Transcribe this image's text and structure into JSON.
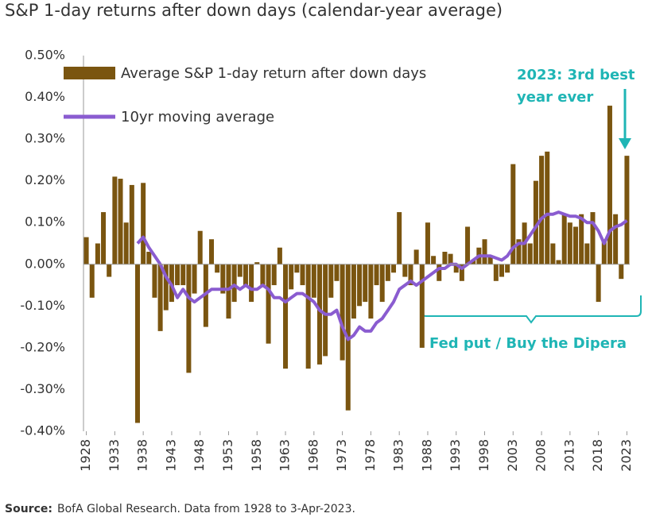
{
  "chart_data": {
    "type": "bar",
    "title": "S&P 1-day returns after down days (calendar-year average)",
    "x": [
      1928,
      1929,
      1930,
      1931,
      1932,
      1933,
      1934,
      1935,
      1936,
      1937,
      1938,
      1939,
      1940,
      1941,
      1942,
      1943,
      1944,
      1945,
      1946,
      1947,
      1948,
      1949,
      1950,
      1951,
      1952,
      1953,
      1954,
      1955,
      1956,
      1957,
      1958,
      1959,
      1960,
      1961,
      1962,
      1963,
      1964,
      1965,
      1966,
      1967,
      1968,
      1969,
      1970,
      1971,
      1972,
      1973,
      1974,
      1975,
      1976,
      1977,
      1978,
      1979,
      1980,
      1981,
      1982,
      1983,
      1984,
      1985,
      1986,
      1987,
      1988,
      1989,
      1990,
      1991,
      1992,
      1993,
      1994,
      1995,
      1996,
      1997,
      1998,
      1999,
      2000,
      2001,
      2002,
      2003,
      2004,
      2005,
      2006,
      2007,
      2008,
      2009,
      2010,
      2011,
      2012,
      2013,
      2014,
      2015,
      2016,
      2017,
      2018,
      2019,
      2020,
      2021,
      2022,
      2023
    ],
    "series": [
      {
        "name": "Average S&P 1-day return after down days",
        "color": "#7a5510",
        "type": "bar",
        "values": [
          0.065,
          -0.08,
          0.05,
          0.125,
          -0.03,
          0.21,
          0.205,
          0.1,
          0.19,
          -0.38,
          0.195,
          0.03,
          -0.08,
          -0.16,
          -0.11,
          -0.09,
          -0.05,
          -0.05,
          -0.26,
          -0.07,
          0.08,
          -0.15,
          0.06,
          -0.02,
          -0.07,
          -0.13,
          -0.09,
          -0.03,
          -0.05,
          -0.09,
          0.005,
          -0.05,
          -0.19,
          -0.05,
          0.04,
          -0.25,
          -0.06,
          -0.02,
          -0.05,
          -0.25,
          -0.08,
          -0.24,
          -0.22,
          -0.08,
          -0.04,
          -0.23,
          -0.35,
          -0.13,
          -0.1,
          -0.09,
          -0.13,
          -0.05,
          -0.09,
          -0.04,
          -0.02,
          0.125,
          -0.03,
          -0.05,
          0.035,
          -0.2,
          0.1,
          0.02,
          -0.04,
          0.03,
          0.025,
          -0.02,
          -0.04,
          0.09,
          0.01,
          0.04,
          0.06,
          0.02,
          -0.04,
          -0.03,
          -0.02,
          0.24,
          0.06,
          0.1,
          0.05,
          0.2,
          0.26,
          0.27,
          0.05,
          0.01,
          0.12,
          0.1,
          0.09,
          0.12,
          0.05,
          0.125,
          -0.09,
          0.06,
          0.38,
          0.12,
          -0.035,
          0.26
        ]
      },
      {
        "name": "10yr moving average",
        "color": "#8a5cd0",
        "type": "line",
        "values": [
          null,
          null,
          null,
          null,
          null,
          null,
          null,
          null,
          null,
          0.05,
          0.065,
          0.04,
          0.02,
          0.0,
          -0.03,
          -0.05,
          -0.08,
          -0.06,
          -0.08,
          -0.09,
          -0.08,
          -0.07,
          -0.06,
          -0.06,
          -0.06,
          -0.06,
          -0.05,
          -0.06,
          -0.05,
          -0.06,
          -0.06,
          -0.05,
          -0.06,
          -0.08,
          -0.08,
          -0.09,
          -0.08,
          -0.07,
          -0.07,
          -0.08,
          -0.09,
          -0.11,
          -0.12,
          -0.12,
          -0.11,
          -0.15,
          -0.18,
          -0.17,
          -0.15,
          -0.16,
          -0.16,
          -0.14,
          -0.13,
          -0.11,
          -0.09,
          -0.06,
          -0.05,
          -0.04,
          -0.05,
          -0.04,
          -0.03,
          -0.02,
          -0.01,
          -0.01,
          0.0,
          0.0,
          -0.01,
          0.0,
          0.01,
          0.02,
          0.02,
          0.02,
          0.015,
          0.01,
          0.02,
          0.04,
          0.05,
          0.05,
          0.07,
          0.09,
          0.11,
          0.12,
          0.12,
          0.125,
          0.12,
          0.115,
          0.115,
          0.11,
          0.1,
          0.1,
          0.08,
          0.05,
          0.08,
          0.09,
          0.095,
          0.105
        ]
      }
    ],
    "xlim": [
      1927.5,
      2023.5
    ],
    "xticks": [
      1928,
      1933,
      1938,
      1943,
      1948,
      1953,
      1958,
      1963,
      1968,
      1973,
      1978,
      1983,
      1988,
      1993,
      1998,
      2003,
      2008,
      2013,
      2018,
      2023
    ],
    "ylim": [
      -0.4,
      0.5
    ],
    "yticks": [
      {
        "value": 0.5,
        "label": "0.50%"
      },
      {
        "value": 0.4,
        "label": "0.40%"
      },
      {
        "value": 0.3,
        "label": "0.30%"
      },
      {
        "value": 0.2,
        "label": "0.20%"
      },
      {
        "value": 0.1,
        "label": "0.10%"
      },
      {
        "value": 0,
        "label": "0.00%"
      },
      {
        "value": -0.1,
        "label": "-0.10%"
      },
      {
        "value": -0.2,
        "label": "-0.20%"
      },
      {
        "value": -0.3,
        "label": "-0.30%"
      },
      {
        "value": -0.4,
        "label": "-0.40%"
      }
    ],
    "annotations": [
      "2023: 3rd best",
      "year ever",
      "Fed put / Buy the Dipera"
    ],
    "source_label": "Source:",
    "source": "BofA Global Research. Data from 1928 to 3-Apr-2023."
  }
}
